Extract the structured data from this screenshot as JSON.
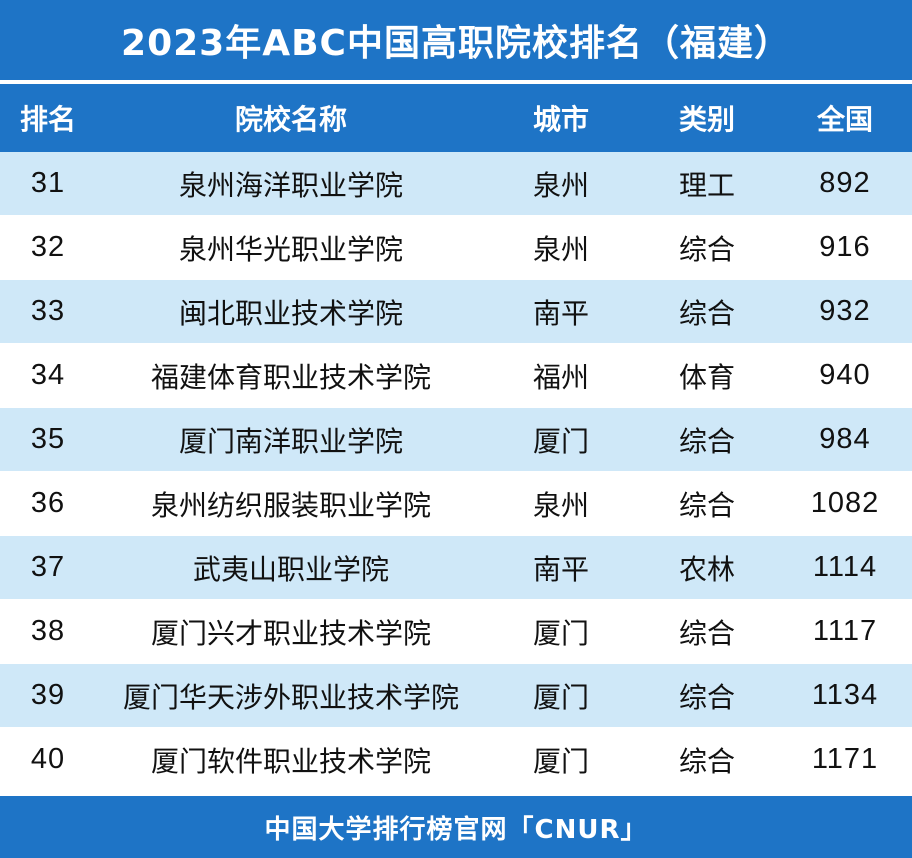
{
  "title": "2023年ABC中国高职院校排名（福建）",
  "columns": {
    "rank": "排名",
    "name": "院校名称",
    "city": "城市",
    "type": "类别",
    "national": "全国"
  },
  "rows": [
    {
      "rank": "31",
      "name": "泉州海洋职业学院",
      "city": "泉州",
      "type": "理工",
      "national": "892"
    },
    {
      "rank": "32",
      "name": "泉州华光职业学院",
      "city": "泉州",
      "type": "综合",
      "national": "916"
    },
    {
      "rank": "33",
      "name": "闽北职业技术学院",
      "city": "南平",
      "type": "综合",
      "national": "932"
    },
    {
      "rank": "34",
      "name": "福建体育职业技术学院",
      "city": "福州",
      "type": "体育",
      "national": "940"
    },
    {
      "rank": "35",
      "name": "厦门南洋职业学院",
      "city": "厦门",
      "type": "综合",
      "national": "984"
    },
    {
      "rank": "36",
      "name": "泉州纺织服装职业学院",
      "city": "泉州",
      "type": "综合",
      "national": "1082"
    },
    {
      "rank": "37",
      "name": "武夷山职业学院",
      "city": "南平",
      "type": "农林",
      "national": "1114"
    },
    {
      "rank": "38",
      "name": "厦门兴才职业技术学院",
      "city": "厦门",
      "type": "综合",
      "national": "1117"
    },
    {
      "rank": "39",
      "name": "厦门华天涉外职业技术学院",
      "city": "厦门",
      "type": "综合",
      "national": "1134"
    },
    {
      "rank": "40",
      "name": "厦门软件职业技术学院",
      "city": "厦门",
      "type": "综合",
      "national": "1171"
    }
  ],
  "footer": "中国大学排行榜官网「CNUR」",
  "colors": {
    "header_blue": "#1e74c6",
    "row_light_blue": "#cfe8f8",
    "row_white": "#ffffff"
  }
}
